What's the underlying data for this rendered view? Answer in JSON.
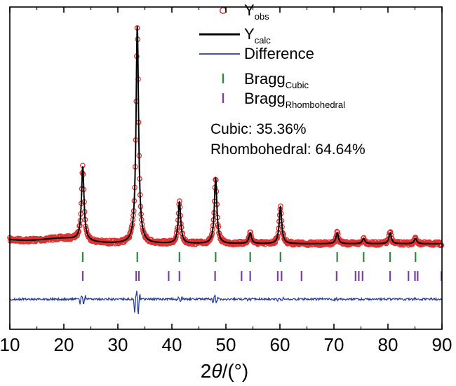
{
  "chart_data": {
    "type": "line",
    "title": "",
    "xlabel_prefix": "2",
    "xlabel_theta": "θ",
    "xlabel_unit": "/(°)",
    "ylabel": "",
    "xlim": [
      10,
      90
    ],
    "x_ticks": [
      10,
      20,
      30,
      40,
      50,
      60,
      70,
      80,
      90
    ],
    "x_tick_labels": [
      "10",
      "20",
      "30",
      "40",
      "50",
      "60",
      "70",
      "80",
      "90"
    ],
    "y_ticks_shown": false,
    "grid": false,
    "legend_placement": "top-center",
    "legend": [
      {
        "symbol": "circle",
        "color": "#e03030",
        "main": "Y",
        "sub": "obs"
      },
      {
        "symbol": "line",
        "color": "#000000",
        "main": "Y",
        "sub": "calc"
      },
      {
        "symbol": "line",
        "color": "#2a3f9a",
        "main": "Difference",
        "sub": ""
      },
      {
        "symbol": "tick",
        "color": "#2e8b3a",
        "main": "Bragg",
        "sub": "Cubic"
      },
      {
        "symbol": "tick",
        "color": "#7b3fa0",
        "main": "Bragg",
        "sub": "Rhombohedral"
      }
    ],
    "annotations": [
      "Cubic: 35.36%",
      "Rhombohedral: 64.64%"
    ],
    "peaks": [
      {
        "x": 23.5,
        "height": 0.34
      },
      {
        "x": 33.6,
        "height": 1.0
      },
      {
        "x": 41.4,
        "height": 0.19
      },
      {
        "x": 48.1,
        "height": 0.3
      },
      {
        "x": 54.5,
        "height": 0.05
      },
      {
        "x": 60.1,
        "height": 0.17
      },
      {
        "x": 70.6,
        "height": 0.05
      },
      {
        "x": 75.5,
        "height": 0.025
      },
      {
        "x": 80.4,
        "height": 0.05
      },
      {
        "x": 85.1,
        "height": 0.025
      }
    ],
    "bragg_cubic": [
      23.5,
      33.6,
      41.4,
      48.1,
      54.5,
      60.1,
      70.6,
      75.5,
      80.4,
      85.1
    ],
    "bragg_rhombohedral": [
      23.5,
      33.4,
      33.9,
      39.4,
      41.4,
      48.0,
      52.9,
      54.5,
      59.6,
      60.3,
      64.0,
      70.5,
      74.0,
      74.6,
      75.3,
      80.4,
      83.8,
      85.0,
      85.5,
      89.9
    ],
    "colors": {
      "observed": "#e03030",
      "calculated": "#000000",
      "difference": "#2a3f9a",
      "bragg_cubic": "#2e8b3a",
      "bragg_rhombohedral": "#7b3fa0"
    }
  }
}
